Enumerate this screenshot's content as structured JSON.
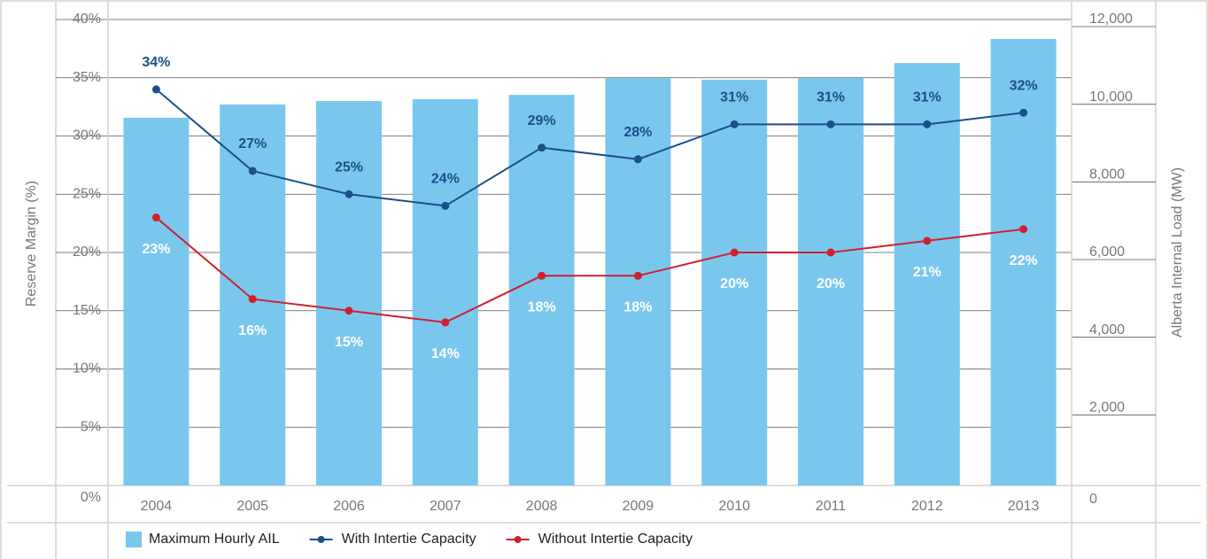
{
  "chart_data": {
    "type": "combo",
    "ylabel": "Reserve Margin (%)",
    "y2label": "Alberta Internal Load (MW)",
    "categories": [
      "2004",
      "2005",
      "2006",
      "2007",
      "2008",
      "2009",
      "2010",
      "2011",
      "2012",
      "2013"
    ],
    "ylim": [
      0,
      40
    ],
    "yticks": [
      {
        "value": 0,
        "label": "0%"
      },
      {
        "value": 5,
        "label": "5%"
      },
      {
        "value": 10,
        "label": "10%"
      },
      {
        "value": 15,
        "label": "15%"
      },
      {
        "value": 20,
        "label": "20%"
      },
      {
        "value": 25,
        "label": "25%"
      },
      {
        "value": 30,
        "label": "30%"
      },
      {
        "value": 35,
        "label": "35%"
      },
      {
        "value": 40,
        "label": "40%"
      }
    ],
    "y2lim": [
      0,
      12000
    ],
    "y2ticks": [
      0,
      {
        "value": 2000,
        "label": "2,000"
      },
      {
        "value": 4000,
        "label": "4,000"
      },
      {
        "value": 6000,
        "label": "6,000"
      },
      {
        "value": 8000,
        "label": "8,000"
      },
      {
        "value": 10000,
        "label": "10,000"
      },
      {
        "value": 12000,
        "label": "12,000"
      }
    ],
    "grid": true,
    "legend": "bottom",
    "series": [
      {
        "name": "Maximum Hourly AIL",
        "type": "bar",
        "axis": "y2",
        "color": "#7ac7ee",
        "values": [
          9470,
          9810,
          9900,
          9950,
          10060,
          10490,
          10450,
          10490,
          10880,
          11500
        ]
      },
      {
        "name": "With Intertie Capacity",
        "type": "line",
        "color": "#1b4f8a",
        "values": [
          34,
          27,
          25,
          24,
          29,
          28,
          31,
          31,
          31,
          32
        ],
        "value_labels": [
          "34%",
          "27%",
          "25%",
          "24%",
          "29%",
          "28%",
          "31%",
          "31%",
          "31%",
          "32%"
        ]
      },
      {
        "name": "Without Intertie Capacity",
        "type": "line",
        "color": "#d0202e",
        "values": [
          23,
          16,
          15,
          14,
          18,
          18,
          20,
          20,
          21,
          22
        ],
        "value_labels": [
          "23%",
          "16%",
          "15%",
          "14%",
          "18%",
          "18%",
          "20%",
          "20%",
          "21%",
          "22%"
        ]
      }
    ]
  }
}
